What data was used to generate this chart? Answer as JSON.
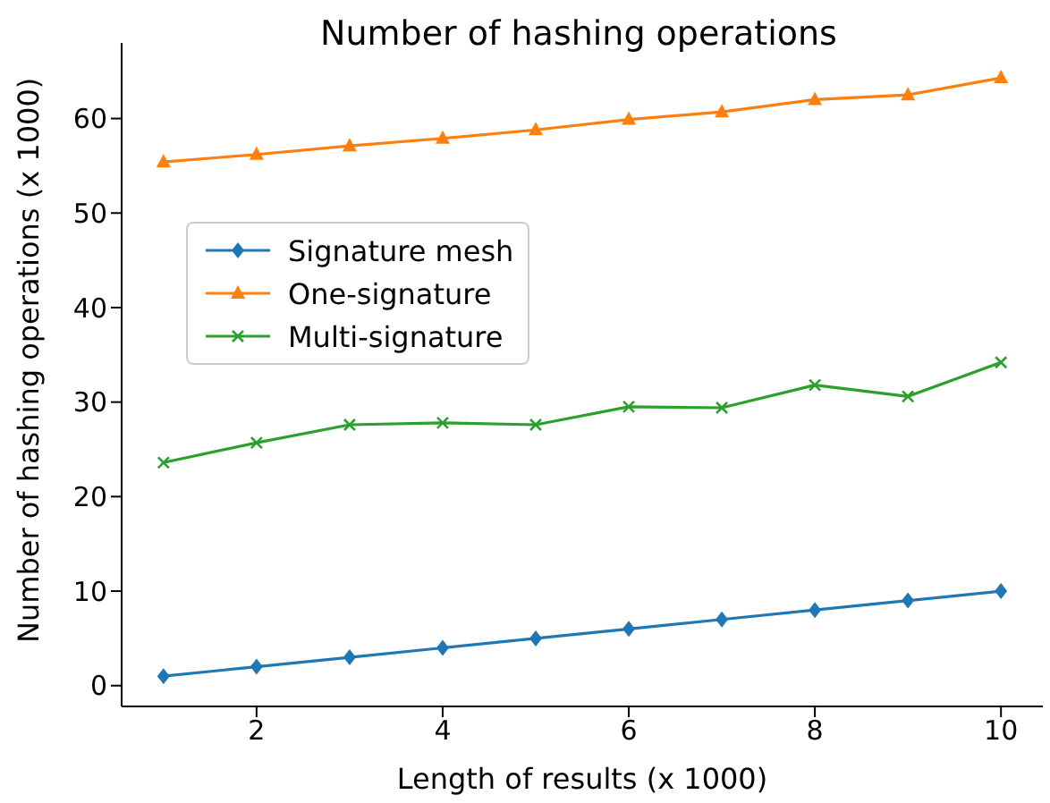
{
  "chart_data": {
    "type": "line",
    "title": "Number of hashing operations",
    "xlabel": "Length of results (x 1000)",
    "ylabel": "Number of hashing operations (x 1000)",
    "x": [
      1,
      2,
      3,
      4,
      5,
      6,
      7,
      8,
      9,
      10
    ],
    "series": [
      {
        "name": "Signature mesh",
        "color": "#1f77b4",
        "marker": "diamond",
        "values": [
          1,
          2,
          3,
          4,
          5,
          6,
          7,
          8,
          9,
          10
        ]
      },
      {
        "name": "One-signature",
        "color": "#ff7f0e",
        "marker": "triangle",
        "values": [
          55.4,
          56.2,
          57.1,
          57.9,
          58.8,
          59.9,
          60.7,
          62.0,
          62.5,
          64.3
        ]
      },
      {
        "name": "Multi-signature",
        "color": "#2ca02c",
        "marker": "cross",
        "values": [
          23.6,
          25.7,
          27.6,
          27.8,
          27.6,
          29.5,
          29.4,
          31.8,
          30.6,
          34.2
        ]
      }
    ],
    "xlim": [
      0.55,
      10.45
    ],
    "xticks": [
      2,
      4,
      6,
      8,
      10
    ],
    "ylim": [
      -2.2,
      68
    ],
    "yticks": [
      0,
      10,
      20,
      30,
      40,
      50,
      60
    ],
    "grid": false,
    "legend": "left",
    "line_style": "solid"
  }
}
